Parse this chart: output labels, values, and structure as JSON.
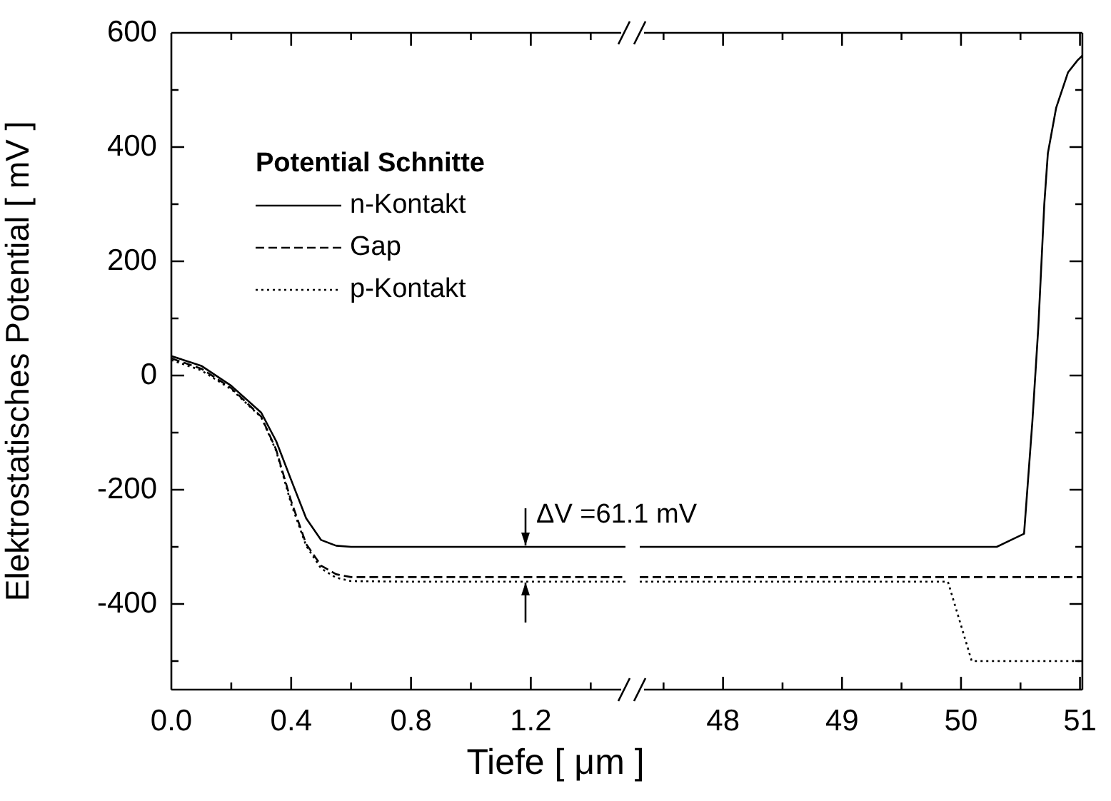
{
  "chart_data": [
    {
      "type": "line",
      "xlabel": "Tiefe [ μm ]",
      "ylabel": "Elektrostatisches Potential [ mV ]",
      "legend_title": "Potential Schnitte",
      "legend": "top left",
      "marker": "none",
      "xlim": [
        0,
        1.516
      ],
      "xticks": [
        {
          "value": 0,
          "label": "0.0"
        },
        {
          "value": 0.2,
          "label": null
        },
        {
          "value": 0.4,
          "label": "0.4"
        },
        {
          "value": 0.6,
          "label": null
        },
        {
          "value": 0.8,
          "label": "0.8"
        },
        {
          "value": 1.0,
          "label": null
        },
        {
          "value": 1.2,
          "label": "1.2"
        },
        {
          "value": 1.4,
          "label": null
        }
      ],
      "ylim": [
        -550,
        600
      ],
      "yticks": [
        {
          "value": -500,
          "label": null
        },
        -400,
        {
          "value": -300,
          "label": null
        },
        -200,
        {
          "value": -100,
          "label": null
        },
        0,
        {
          "value": 100,
          "label": null
        },
        200,
        {
          "value": 300,
          "label": null
        },
        400,
        {
          "value": 500,
          "label": null
        },
        600
      ],
      "annotations": [
        {
          "text": "ΔV =61.1 mV",
          "x": 1.18,
          "y": -300
        }
      ],
      "series": [
        {
          "name": "n-Kontakt",
          "color": "#000000",
          "line_style": "solid",
          "x": [
            0,
            0.1,
            0.2,
            0.3,
            0.35,
            0.4,
            0.45,
            0.5,
            0.55,
            0.6,
            0.8,
            1.516
          ],
          "values": [
            34,
            17,
            -18,
            -65,
            -115,
            -183,
            -250,
            -288,
            -298,
            -300,
            -300,
            -300
          ]
        },
        {
          "name": "Gap",
          "color": "#000000",
          "line_style": "dashed",
          "x": [
            0,
            0.1,
            0.2,
            0.3,
            0.35,
            0.4,
            0.45,
            0.5,
            0.55,
            0.6,
            0.8,
            1.516
          ],
          "values": [
            30,
            12,
            -22,
            -72,
            -130,
            -220,
            -295,
            -333,
            -348,
            -353,
            -353,
            -353
          ]
        },
        {
          "name": "p-Kontakt",
          "color": "#000000",
          "line_style": "dotted",
          "x": [
            0,
            0.1,
            0.2,
            0.3,
            0.35,
            0.4,
            0.45,
            0.5,
            0.55,
            0.6,
            0.8,
            1.516
          ],
          "values": [
            27,
            9,
            -24,
            -73,
            -132,
            -225,
            -298,
            -338,
            -354,
            -360,
            -361,
            -361
          ]
        }
      ]
    },
    {
      "type": "line",
      "tick_labels": "x",
      "legend": false,
      "marker": "none",
      "xlim": [
        47.3,
        51.02
      ],
      "xticks": [
        {
          "value": 47.5,
          "label": null
        },
        48,
        {
          "value": 48.5,
          "label": null
        },
        49,
        {
          "value": 49.5,
          "label": null
        },
        50,
        {
          "value": 50.5,
          "label": null
        },
        51
      ],
      "ylim": [
        -550,
        600
      ],
      "yticks": [
        {
          "value": -500,
          "label": null
        },
        -400,
        {
          "value": -300,
          "label": null
        },
        -200,
        {
          "value": -100,
          "label": null
        },
        0,
        {
          "value": 100,
          "label": null
        },
        200,
        {
          "value": 300,
          "label": null
        },
        400,
        {
          "value": 500,
          "label": null
        },
        600
      ],
      "series": [
        {
          "color": "#000000",
          "line_style": "solid",
          "x": [
            47.3,
            50.3,
            50.53,
            50.6,
            50.65,
            50.7,
            50.73,
            50.8,
            50.9,
            50.98,
            51.02
          ],
          "values": [
            -300,
            -300,
            -277,
            -80,
            85,
            300,
            389,
            469,
            531,
            552,
            560
          ]
        },
        {
          "color": "#000000",
          "line_style": "dashed",
          "x": [
            47.3,
            51.02
          ],
          "values": [
            -353,
            -353
          ]
        },
        {
          "color": "#000000",
          "line_style": "dotted",
          "x": [
            47.3,
            49.89,
            50.09,
            51.02
          ],
          "values": [
            -361,
            -361,
            -500,
            -500
          ]
        }
      ]
    }
  ]
}
